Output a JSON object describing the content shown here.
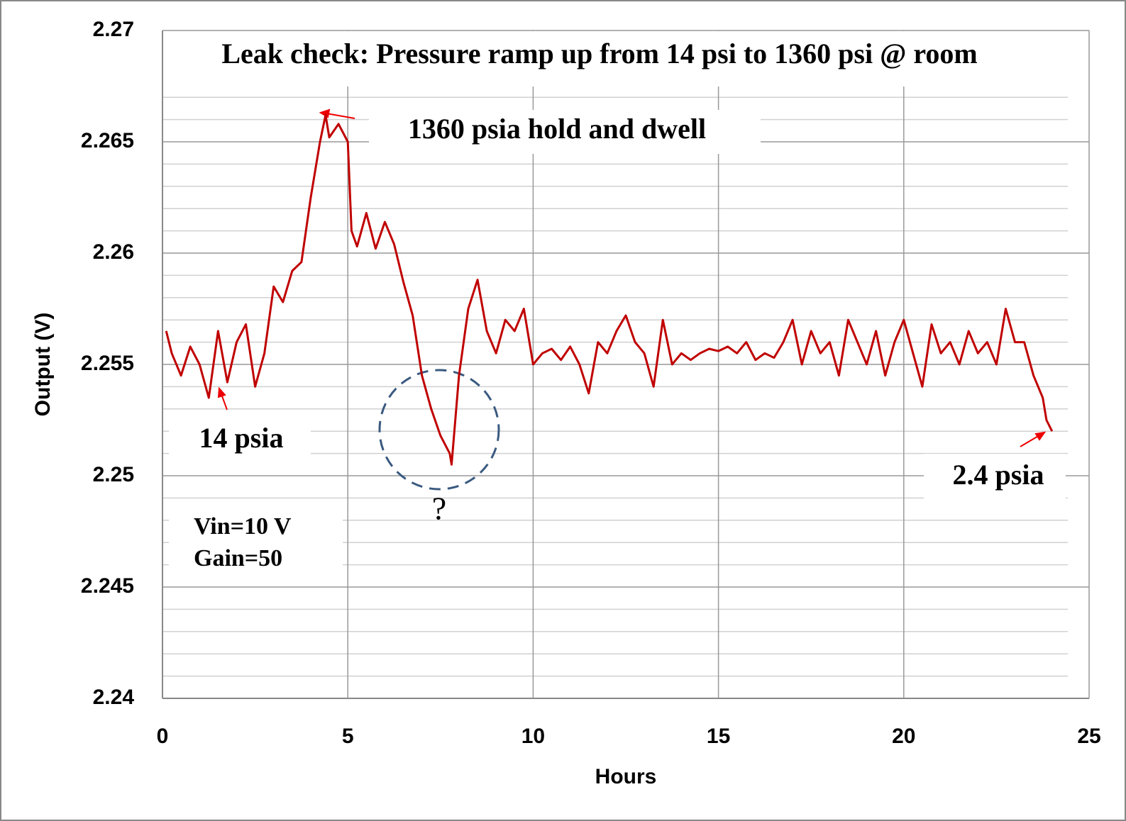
{
  "chart_data": {
    "type": "line",
    "title": "Leak check: Pressure ramp  up from 14 psi to 1360 psi @ room",
    "x_label": "Hours",
    "y_label": "Output (V)",
    "xlim": [
      0,
      25
    ],
    "xticks": [
      0,
      5,
      10,
      15,
      20,
      25
    ],
    "ylim": [
      2.24,
      2.27
    ],
    "yticks": [
      2.24,
      2.245,
      2.25,
      2.255,
      2.26,
      2.265,
      2.27
    ],
    "grid": true,
    "annotations": [
      "1360 psia hold and dwell",
      "14 psia",
      "2.4 psia",
      "Vin=10 V",
      "Gain=50",
      "?"
    ],
    "series": [
      {
        "name": "Output",
        "color": "#c00000",
        "x": [
          0.1,
          0.25,
          0.5,
          0.75,
          1.0,
          1.25,
          1.5,
          1.75,
          2.0,
          2.25,
          2.5,
          2.75,
          3.0,
          3.25,
          3.5,
          3.75,
          4.0,
          4.25,
          4.4,
          4.5,
          4.75,
          5.0,
          5.1,
          5.25,
          5.5,
          5.75,
          6.0,
          6.25,
          6.5,
          6.75,
          7.0,
          7.25,
          7.5,
          7.75,
          7.8,
          8.0,
          8.25,
          8.5,
          8.75,
          9.0,
          9.25,
          9.5,
          9.75,
          10.0,
          10.25,
          10.5,
          10.75,
          11.0,
          11.25,
          11.5,
          11.75,
          12.0,
          12.25,
          12.5,
          12.75,
          13.0,
          13.25,
          13.5,
          13.75,
          14.0,
          14.25,
          14.5,
          14.75,
          15.0,
          15.25,
          15.5,
          15.75,
          16.0,
          16.25,
          16.5,
          16.75,
          17.0,
          17.25,
          17.5,
          17.75,
          18.0,
          18.25,
          18.5,
          18.75,
          19.0,
          19.25,
          19.5,
          19.75,
          20.0,
          20.25,
          20.5,
          20.75,
          21.0,
          21.25,
          21.5,
          21.75,
          22.0,
          22.25,
          22.5,
          22.75,
          23.0,
          23.25,
          23.5,
          23.75,
          23.85,
          24.0
        ],
        "values": [
          2.2565,
          2.2555,
          2.2545,
          2.2558,
          2.255,
          2.2535,
          2.2565,
          2.2542,
          2.256,
          2.2568,
          2.254,
          2.2555,
          2.2585,
          2.2578,
          2.2592,
          2.2596,
          2.2625,
          2.265,
          2.2662,
          2.2652,
          2.2658,
          2.265,
          2.261,
          2.2603,
          2.2618,
          2.2602,
          2.2614,
          2.2604,
          2.2587,
          2.2572,
          2.2545,
          2.253,
          2.2518,
          2.251,
          2.2505,
          2.2545,
          2.2575,
          2.2588,
          2.2565,
          2.2555,
          2.257,
          2.2565,
          2.2575,
          2.255,
          2.2555,
          2.2557,
          2.2552,
          2.2558,
          2.255,
          2.2537,
          2.256,
          2.2555,
          2.2565,
          2.2572,
          2.256,
          2.2555,
          2.254,
          2.257,
          2.255,
          2.2555,
          2.2552,
          2.2555,
          2.2557,
          2.2556,
          2.2558,
          2.2555,
          2.256,
          2.2552,
          2.2555,
          2.2553,
          2.256,
          2.257,
          2.255,
          2.2565,
          2.2555,
          2.256,
          2.2545,
          2.257,
          2.256,
          2.255,
          2.2565,
          2.2545,
          2.256,
          2.257,
          2.2555,
          2.254,
          2.2568,
          2.2555,
          2.256,
          2.255,
          2.2565,
          2.2555,
          2.256,
          2.255,
          2.2575,
          2.256,
          2.256,
          2.2545,
          2.2535,
          2.2525,
          2.252
        ]
      }
    ]
  }
}
